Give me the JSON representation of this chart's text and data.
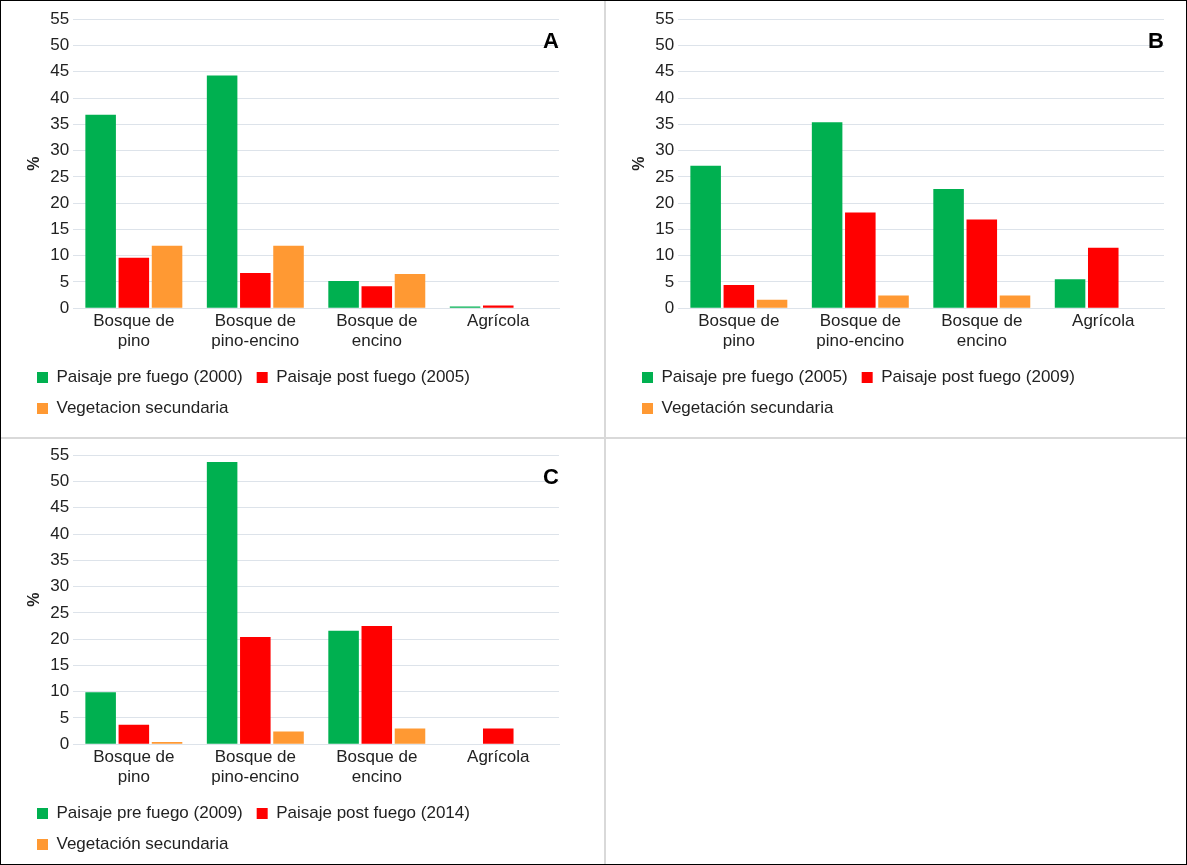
{
  "chart_data": [
    {
      "type": "bar",
      "ylabel": "%",
      "annotations": [
        "A"
      ],
      "categories": [
        "Bosque de pino",
        "Bosque de pino-encino",
        "Bosque de encino",
        "Agrícola"
      ],
      "series": [
        {
          "name": "Paisaje pre fuego (2000)",
          "color": "#00b050",
          "values": [
            36.8,
            44.3,
            5.2,
            0.3
          ]
        },
        {
          "name": "Paisaje post fuego (2005)",
          "color": "#ff0000",
          "values": [
            9.6,
            6.7,
            4.2,
            0.5
          ]
        },
        {
          "name": "Vegetacion secundaria",
          "color": "#ff9933",
          "values": [
            11.9,
            11.9,
            6.5,
            null
          ]
        }
      ],
      "ylim": [
        0,
        55
      ],
      "yticks": [
        0,
        5,
        10,
        15,
        20,
        25,
        30,
        35,
        40,
        45,
        50,
        55
      ],
      "grid": "y",
      "legend": "bottom"
    },
    {
      "type": "bar",
      "ylabel": "%",
      "annotations": [
        "B"
      ],
      "categories": [
        "Bosque de pino",
        "Bosque de pino-encino",
        "Bosque de encino",
        "Agrícola"
      ],
      "series": [
        {
          "name": "Paisaje pre fuego (2005)",
          "color": "#00b050",
          "values": [
            27.1,
            35.4,
            22.7,
            5.5
          ]
        },
        {
          "name": "Paisaje post fuego (2009)",
          "color": "#ff0000",
          "values": [
            4.4,
            18.2,
            16.9,
            11.5
          ]
        },
        {
          "name": "Vegetación secundaria",
          "color": "#ff9933",
          "values": [
            1.6,
            2.4,
            2.4,
            null
          ]
        }
      ],
      "ylim": [
        0,
        55
      ],
      "yticks": [
        0,
        5,
        10,
        15,
        20,
        25,
        30,
        35,
        40,
        45,
        50,
        55
      ],
      "grid": "y",
      "legend": "bottom"
    },
    {
      "type": "bar",
      "ylabel": "%",
      "annotations": [
        "C"
      ],
      "categories": [
        "Bosque de pino",
        "Bosque de pino-encino",
        "Bosque de encino",
        "Agrícola"
      ],
      "series": [
        {
          "name": "Paisaje pre fuego (2009)",
          "color": "#00b050",
          "values": [
            9.9,
            53.7,
            21.6,
            null
          ]
        },
        {
          "name": "Paisaje post fuego (2014)",
          "color": "#ff0000",
          "values": [
            3.7,
            20.4,
            22.5,
            3.0
          ]
        },
        {
          "name": "Vegetación secundaria",
          "color": "#ff9933",
          "values": [
            0.4,
            2.4,
            3.0,
            null
          ]
        }
      ],
      "ylim": [
        0,
        55
      ],
      "yticks": [
        0,
        5,
        10,
        15,
        20,
        25,
        30,
        35,
        40,
        45,
        50,
        55
      ],
      "grid": "y",
      "legend": "bottom"
    }
  ]
}
